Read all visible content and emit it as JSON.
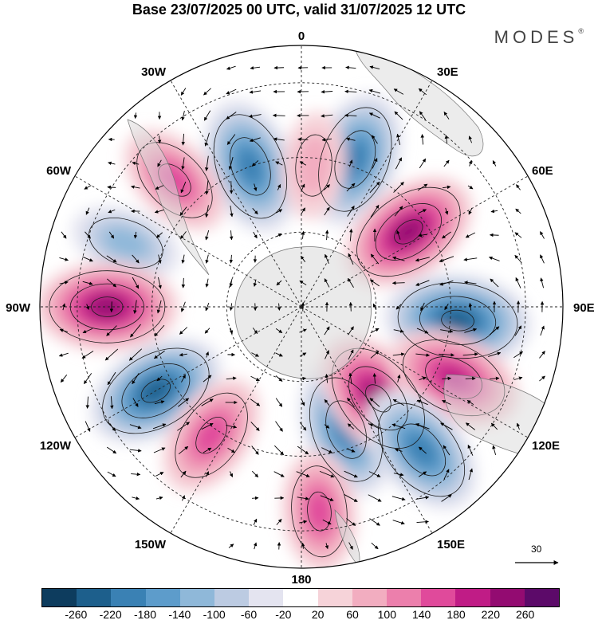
{
  "title": "Base 23/07/2025 00 UTC, valid 31/07/2025 12 UTC",
  "logo": "MODES",
  "logo_mark": "®",
  "longitude_labels": {
    "top": "0",
    "top_right": "30E",
    "upper_right": "60E",
    "right": "90E",
    "lower_right": "120E",
    "bottom_right": "150E",
    "bottom": "180",
    "bottom_left": "150W",
    "lower_left": "120W",
    "left": "90W",
    "upper_left": "60W",
    "top_left": "30W"
  },
  "reference_vector": "30",
  "colorbar": {
    "colors": [
      "#0d3c5e",
      "#1d5f8c",
      "#3a81b4",
      "#5d9ccb",
      "#8fb8d9",
      "#bccbe2",
      "#e4e4f0",
      "#ffffff",
      "#f6d3d9",
      "#f2adc0",
      "#ec7fac",
      "#e04a9b",
      "#c01c86",
      "#930b71",
      "#5c0a69"
    ],
    "ticks": [
      "-260",
      "-220",
      "-180",
      "-140",
      "-100",
      "-60",
      "-20",
      "20",
      "60",
      "100",
      "140",
      "180",
      "220",
      "260"
    ]
  },
  "anomaly_centers": [
    {
      "lon": -20,
      "lat": -50,
      "value": -200
    },
    {
      "lon": 20,
      "lat": -48,
      "value": -200
    },
    {
      "lon": -45,
      "lat": -42,
      "value": 140
    },
    {
      "lon": 5,
      "lat": -52,
      "value": 80
    },
    {
      "lon": -70,
      "lat": -40,
      "value": -100
    },
    {
      "lon": 55,
      "lat": -55,
      "value": 220
    },
    {
      "lon": 95,
      "lat": -48,
      "value": -240
    },
    {
      "lon": -90,
      "lat": -38,
      "value": 220
    },
    {
      "lon": -120,
      "lat": -45,
      "value": -220
    },
    {
      "lon": -145,
      "lat": -48,
      "value": 160
    },
    {
      "lon": 160,
      "lat": -55,
      "value": -200
    },
    {
      "lon": 140,
      "lat": -58,
      "value": 220
    },
    {
      "lon": 115,
      "lat": -45,
      "value": 200
    },
    {
      "lon": 140,
      "lat": -40,
      "value": -200
    },
    {
      "lon": 175,
      "lat": -35,
      "value": 140
    }
  ]
}
